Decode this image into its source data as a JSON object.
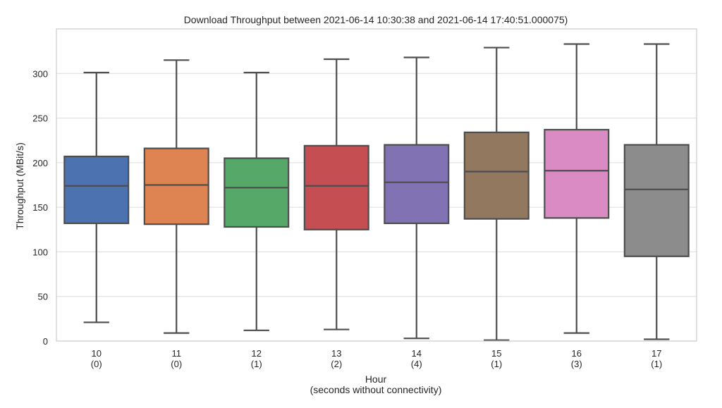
{
  "chart_data": {
    "type": "box",
    "title": "Download Throughput between 2021-06-14 10:30:38 and 2021-06-14 17:40:51.000075)",
    "xlabel": "Hour",
    "xlabel_sub": "(seconds without connectivity)",
    "ylabel": "Throughput (MBit/s)",
    "ylim": [
      0,
      350
    ],
    "yticks": [
      0,
      50,
      100,
      150,
      200,
      250,
      300
    ],
    "grid": true,
    "categories": [
      {
        "hour": "10",
        "sub": "(0)",
        "color": "#4c72b0",
        "stats": {
          "min": 21,
          "q1": 132,
          "median": 174,
          "q3": 207,
          "max": 301
        }
      },
      {
        "hour": "11",
        "sub": "(0)",
        "color": "#dd8452",
        "stats": {
          "min": 9,
          "q1": 131,
          "median": 175,
          "q3": 216,
          "max": 315
        }
      },
      {
        "hour": "12",
        "sub": "(1)",
        "color": "#55a868",
        "stats": {
          "min": 12,
          "q1": 128,
          "median": 172,
          "q3": 205,
          "max": 301
        }
      },
      {
        "hour": "13",
        "sub": "(2)",
        "color": "#c44e52",
        "stats": {
          "min": 13,
          "q1": 125,
          "median": 174,
          "q3": 219,
          "max": 316
        }
      },
      {
        "hour": "14",
        "sub": "(4)",
        "color": "#8172b3",
        "stats": {
          "min": 3,
          "q1": 132,
          "median": 178,
          "q3": 220,
          "max": 318
        }
      },
      {
        "hour": "15",
        "sub": "(1)",
        "color": "#937860",
        "stats": {
          "min": 1,
          "q1": 137,
          "median": 190,
          "q3": 234,
          "max": 329
        }
      },
      {
        "hour": "16",
        "sub": "(3)",
        "color": "#da8bc3",
        "stats": {
          "min": 9,
          "q1": 138,
          "median": 191,
          "q3": 237,
          "max": 333
        }
      },
      {
        "hour": "17",
        "sub": "(1)",
        "color": "#8c8c8c",
        "stats": {
          "min": 2,
          "q1": 95,
          "median": 170,
          "q3": 220,
          "max": 333
        }
      }
    ]
  }
}
